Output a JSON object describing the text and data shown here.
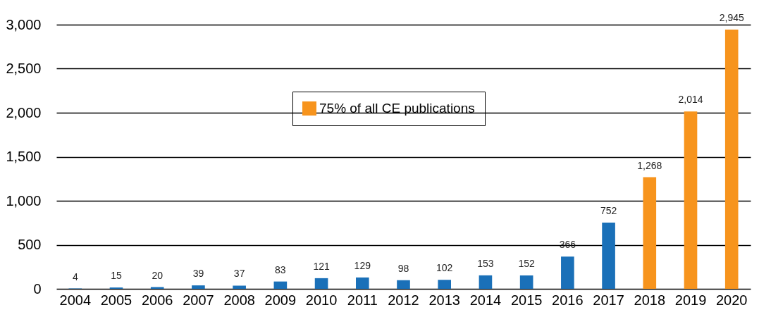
{
  "chart_data": {
    "type": "bar",
    "categories": [
      "2004",
      "2005",
      "2006",
      "2007",
      "2008",
      "2009",
      "2010",
      "2011",
      "2012",
      "2013",
      "2014",
      "2015",
      "2016",
      "2017",
      "2018",
      "2019",
      "2020"
    ],
    "series": [
      {
        "color": "#1a70b8",
        "values": [
          4,
          15,
          20,
          39,
          37,
          83,
          121,
          129,
          98,
          102,
          153,
          152,
          366,
          752,
          null,
          null,
          null
        ],
        "value_labels": [
          "4",
          "15",
          "20",
          "39",
          "37",
          "83",
          "121",
          "129",
          "98",
          "102",
          "153",
          "152",
          "366",
          "752",
          null,
          null,
          null
        ]
      },
      {
        "name": "75% of all CE publications",
        "color": "#f7941d",
        "values": [
          null,
          null,
          null,
          null,
          null,
          null,
          null,
          null,
          null,
          null,
          null,
          null,
          null,
          null,
          1268,
          2014,
          2945
        ],
        "value_labels": [
          null,
          null,
          null,
          null,
          null,
          null,
          null,
          null,
          null,
          null,
          null,
          null,
          null,
          null,
          "1,268",
          "2,014",
          "2,945"
        ]
      }
    ],
    "ylim": [
      0,
      3000
    ],
    "yticks": [
      0,
      {
        "value": 500,
        "label": "500"
      },
      {
        "value": 1000,
        "label": "1,000"
      },
      {
        "value": 1500,
        "label": "1,500"
      },
      {
        "value": 2000,
        "label": "2,000"
      },
      {
        "value": 2500,
        "label": "2,500"
      },
      {
        "value": 3000,
        "label": "3,000"
      }
    ],
    "grid": "y",
    "legend": "top"
  }
}
